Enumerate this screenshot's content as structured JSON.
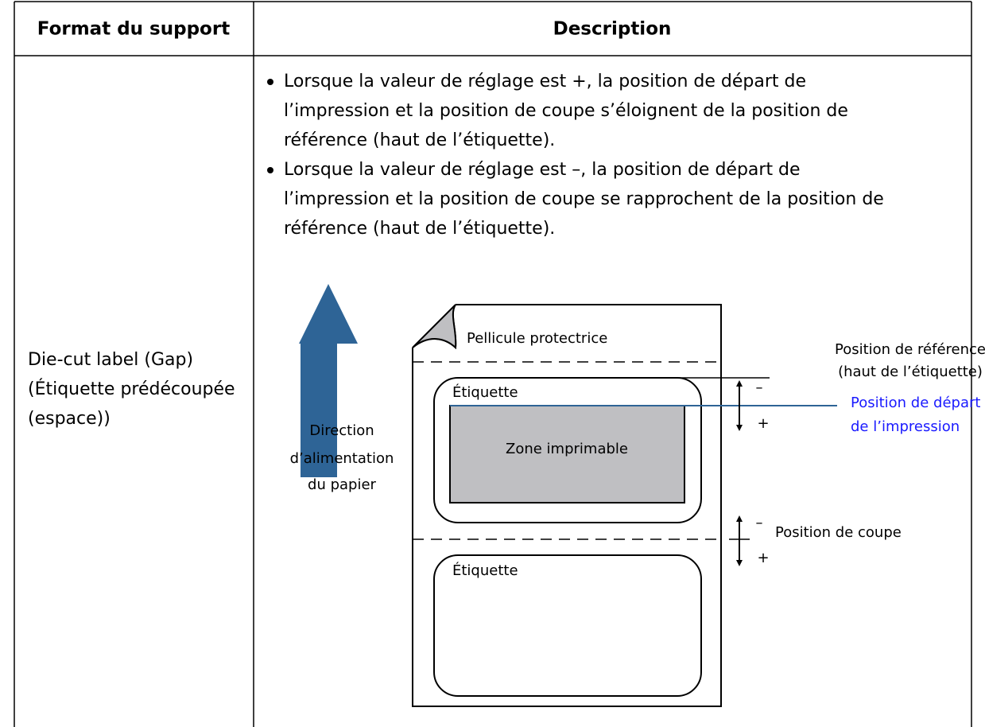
{
  "table": {
    "header": [
      "Format du support",
      "Description"
    ],
    "rows": [
      {
        "format": [
          "Die-cut label (Gap)",
          "(Étiquette prédécoupée",
          "(espace))"
        ],
        "bullets": [
          [
            "Lorsque la valeur de réglage est +, la position de départ de",
            "l’impression et la position de coupe s’éloignent de la position de",
            "référence (haut de l’étiquette)."
          ],
          [
            "Lorsque la valeur de réglage est –, la position de départ de",
            "l’impression et la position de coupe se rapprochent de la position de",
            "référence (haut de l’étiquette)."
          ]
        ]
      }
    ]
  },
  "diagram": {
    "film": "Pellicule protectrice",
    "feed_direction": [
      "Direction",
      "d’alimentation",
      "du papier"
    ],
    "label_top": "Étiquette",
    "printable": "Zone imprimable",
    "label_bottom": "Étiquette",
    "reference": [
      "Position de référence",
      "(haut de l’étiquette)"
    ],
    "print_start": [
      "Position de départ",
      "de l’impression"
    ],
    "cut": "Position de coupe",
    "minus": "–",
    "plus": "+"
  }
}
